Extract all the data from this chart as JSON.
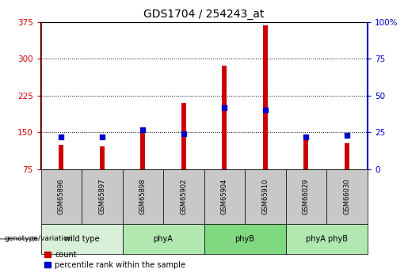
{
  "title": "GDS1704 / 254243_at",
  "samples": [
    "GSM65896",
    "GSM65897",
    "GSM65898",
    "GSM65902",
    "GSM65904",
    "GSM65910",
    "GSM66029",
    "GSM66030"
  ],
  "counts": [
    125,
    122,
    158,
    210,
    285,
    368,
    135,
    128
  ],
  "percentile_ranks": [
    22,
    22,
    27,
    24,
    42,
    40,
    22,
    23
  ],
  "groups": [
    {
      "label": "wild type",
      "start": 0,
      "end": 1,
      "color": "#d8f0d8"
    },
    {
      "label": "phyA",
      "start": 2,
      "end": 3,
      "color": "#b0e8b0"
    },
    {
      "label": "phyB",
      "start": 4,
      "end": 5,
      "color": "#80d880"
    },
    {
      "label": "phyA phyB",
      "start": 6,
      "end": 7,
      "color": "#b0e8b0"
    }
  ],
  "ylim_left": [
    75,
    375
  ],
  "ylim_right": [
    0,
    100
  ],
  "yticks_left": [
    75,
    150,
    225,
    300,
    375
  ],
  "yticks_right": [
    0,
    25,
    50,
    75,
    100
  ],
  "bar_color": "#cc0000",
  "marker_color": "#0000cc",
  "title_fontsize": 10,
  "axis_color_left": "#cc0000",
  "axis_color_right": "#0000cc",
  "grid_color": "#000000",
  "background_plot": "#ffffff",
  "background_label": "#c8c8c8"
}
